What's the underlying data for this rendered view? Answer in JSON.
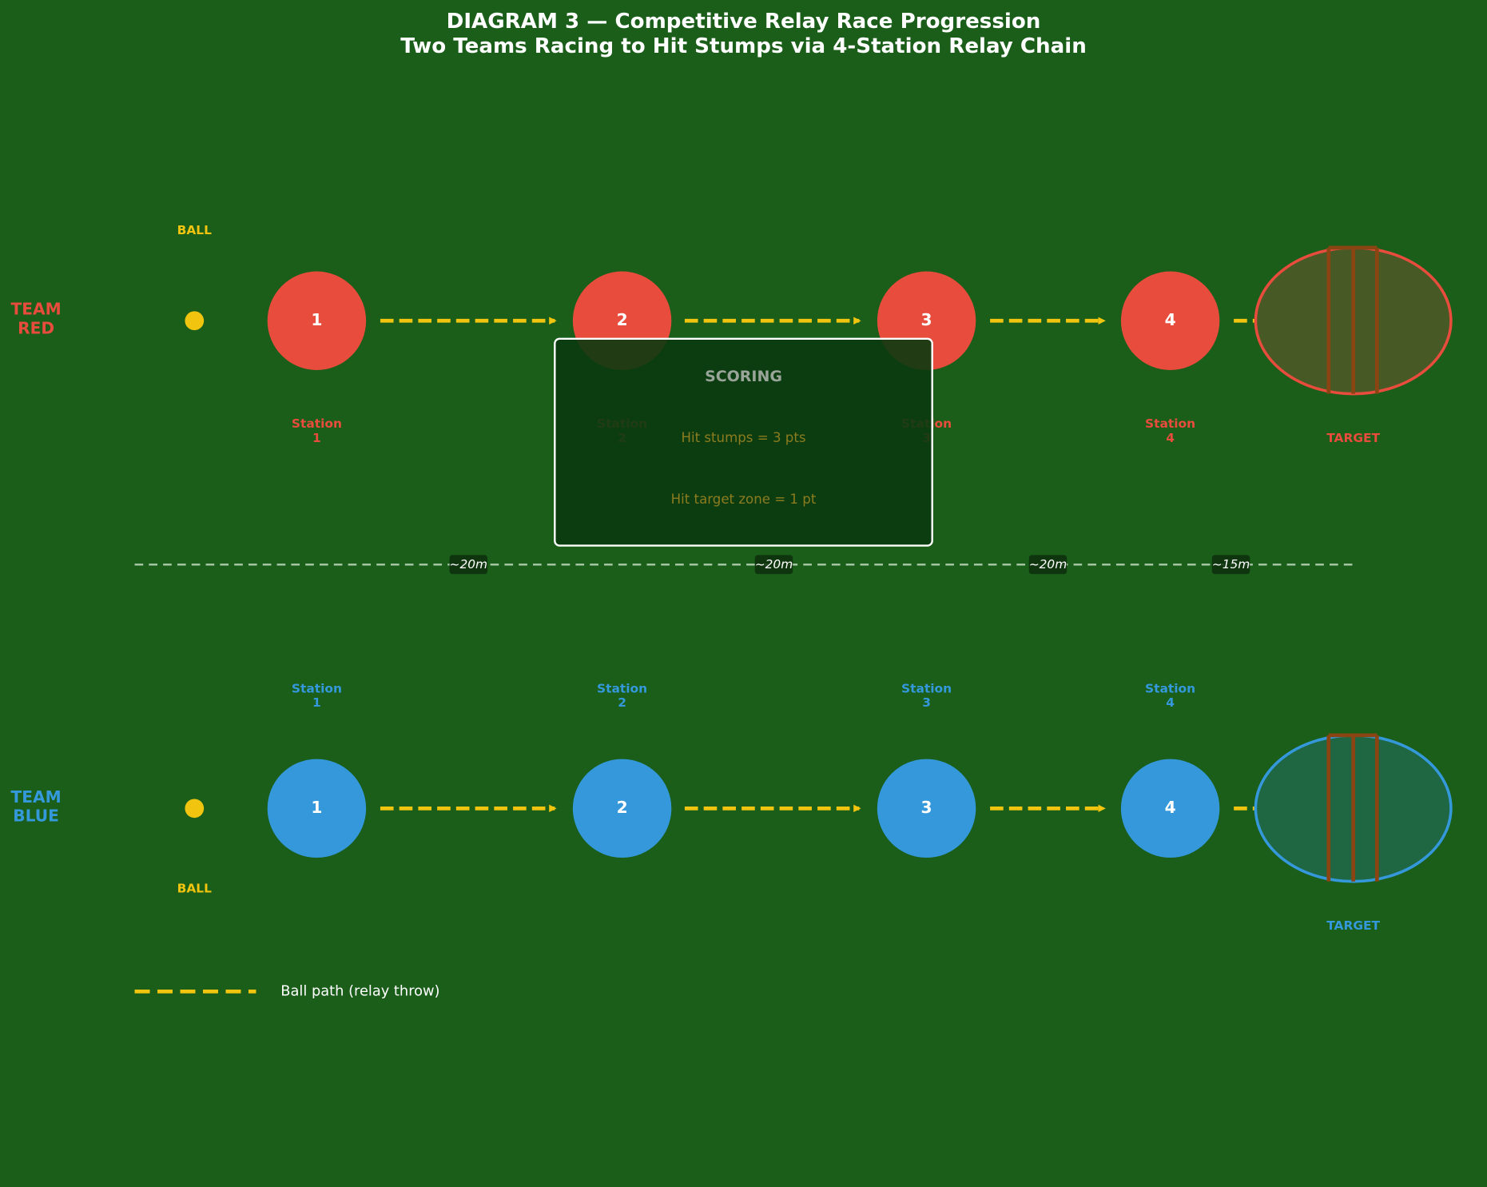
{
  "title": "DIAGRAM 3 — Competitive Relay Race Progression",
  "subtitle": "Two Teams Racing to Hit Stumps via 4-Station Relay Chain",
  "teams": [
    {
      "name_lines": [
        "TEAM",
        "RED"
      ],
      "color": "#e74c3c",
      "target_fill": "#475a26",
      "ball_label": "BALL",
      "stations": [
        "1",
        "2",
        "3",
        "4"
      ],
      "station_labels": [
        [
          "Station",
          "1"
        ],
        [
          "Station",
          "2"
        ],
        [
          "Station",
          "3"
        ],
        [
          "Station",
          "4"
        ]
      ],
      "target_label": "TARGET"
    },
    {
      "name_lines": [
        "TEAM",
        "BLUE"
      ],
      "color": "#3498db",
      "target_fill": "#1f6642",
      "ball_label": "BALL",
      "stations": [
        "1",
        "2",
        "3",
        "4"
      ],
      "station_labels": [
        [
          "Station",
          "1"
        ],
        [
          "Station",
          "2"
        ],
        [
          "Station",
          "3"
        ],
        [
          "Station",
          "4"
        ]
      ],
      "target_label": "TARGET"
    }
  ],
  "distances": [
    "~20m",
    "~20m",
    "~20m",
    "~15m"
  ],
  "scoring": {
    "title": "SCORING",
    "lines": [
      "Hit stumps = 3 pts",
      "Hit target zone = 1 pt"
    ]
  },
  "legend": {
    "label": "Ball path (relay throw)"
  }
}
